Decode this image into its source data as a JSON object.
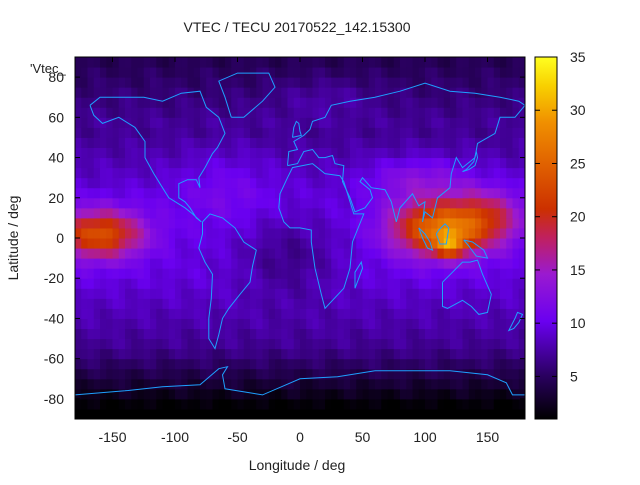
{
  "chart_data": {
    "type": "heatmap",
    "title": "VTEC / TECU 20170522_142.15300",
    "legend_label": "'Vtec_",
    "xlabel": "Longitude / deg",
    "ylabel": "Latitude / deg",
    "xlim": [
      -180,
      180
    ],
    "ylim": [
      -90,
      90
    ],
    "x_ticks": [
      -150,
      -100,
      -50,
      0,
      50,
      100,
      150
    ],
    "y_ticks": [
      -80,
      -60,
      -40,
      -20,
      0,
      20,
      40,
      60,
      80
    ],
    "colorbar": {
      "range": [
        1,
        35
      ],
      "ticks": [
        5,
        10,
        15,
        20,
        25,
        30,
        35
      ],
      "palette": "black-purple-red-orange-yellow"
    },
    "grid": false,
    "value_field_samples": [
      {
        "lon": -150,
        "lat": 0,
        "vtec": 21
      },
      {
        "lon": -100,
        "lat": 0,
        "vtec": 10
      },
      {
        "lon": -50,
        "lat": 20,
        "vtec": 12
      },
      {
        "lon": 0,
        "lat": -10,
        "vtec": 6
      },
      {
        "lon": 110,
        "lat": 0,
        "vtec": 30
      },
      {
        "lon": 120,
        "lat": -5,
        "vtec": 33
      },
      {
        "lon": 90,
        "lat": 15,
        "vtec": 22
      },
      {
        "lon": 150,
        "lat": 10,
        "vtec": 20
      },
      {
        "lon": 100,
        "lat": 40,
        "vtec": 13
      },
      {
        "lon": 0,
        "lat": 70,
        "vtec": 10
      },
      {
        "lon": 0,
        "lat": -80,
        "vtec": 3
      },
      {
        "lon": -120,
        "lat": -40,
        "vtec": 8
      }
    ]
  },
  "colors": {
    "coastline": "#1ea0ff",
    "background": "#ffffff",
    "text": "#222222"
  }
}
